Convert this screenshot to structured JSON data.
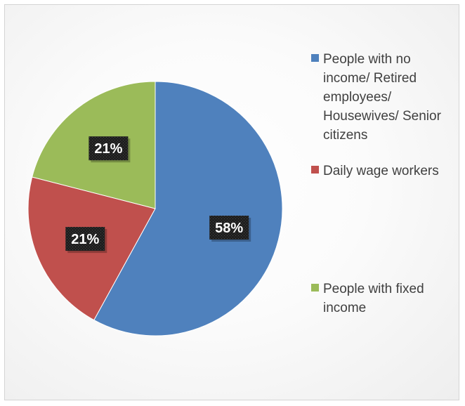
{
  "chart_data": {
    "type": "pie",
    "title": "",
    "series": [
      {
        "values": [
          58,
          21,
          21
        ],
        "labels": [
          "58%",
          "21%",
          "21%"
        ]
      }
    ],
    "categories": [
      "People with no income/ Retired employees/ Housewives/ Senior citizens",
      "Daily wage workers",
      "People with fixed income"
    ],
    "legend": {
      "placement": "right",
      "entries": [
        {
          "lines": [
            "People with no",
            "income/ Retired",
            "employees/",
            "Housewives/ Senior",
            "citizens"
          ]
        },
        {
          "lines": [
            "Daily wage workers"
          ]
        },
        {
          "lines": [
            "People with fixed",
            "income"
          ]
        }
      ]
    },
    "colors": [
      "#4f81bd",
      "#c0504d",
      "#9bbb59"
    ]
  }
}
